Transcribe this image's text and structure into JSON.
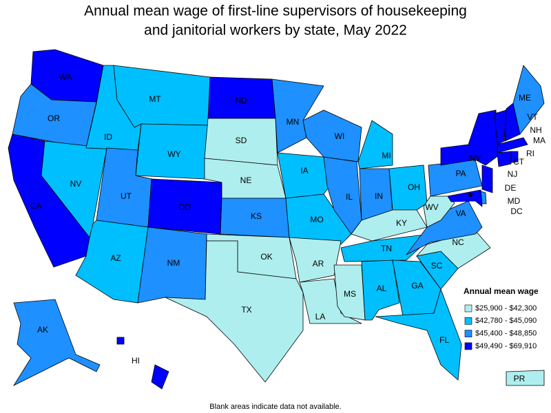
{
  "title": [
    "Annual mean wage of first-line supervisors of housekeeping",
    "and janitorial workers by state, May 2022"
  ],
  "legend": {
    "title": "Annual mean wage",
    "items": [
      {
        "label": "$25,900 - $42,300",
        "color": "#afeeee"
      },
      {
        "label": "$42,780 - $45,090",
        "color": "#00bfff"
      },
      {
        "label": "$45,400 - $48,850",
        "color": "#1e90ff"
      },
      {
        "label": "$49,490 - $69,910",
        "color": "#0000ff"
      }
    ]
  },
  "states": [
    {
      "label": "WA",
      "color": "#0000ff"
    },
    {
      "label": "OR",
      "color": "#1e90ff"
    },
    {
      "label": "CA",
      "color": "#0000ff"
    },
    {
      "label": "NV",
      "color": "#00bfff"
    },
    {
      "label": "ID",
      "color": "#00bfff"
    },
    {
      "label": "MT",
      "color": "#00bfff"
    },
    {
      "label": "WY",
      "color": "#00bfff"
    },
    {
      "label": "UT",
      "color": "#1e90ff"
    },
    {
      "label": "AZ",
      "color": "#00bfff"
    },
    {
      "label": "CO",
      "color": "#0000ff"
    },
    {
      "label": "NM",
      "color": "#1e90ff"
    },
    {
      "label": "ND",
      "color": "#0000ff"
    },
    {
      "label": "SD",
      "color": "#afeeee"
    },
    {
      "label": "NE",
      "color": "#afeeee"
    },
    {
      "label": "KS",
      "color": "#1e90ff"
    },
    {
      "label": "OK",
      "color": "#afeeee"
    },
    {
      "label": "TX",
      "color": "#afeeee"
    },
    {
      "label": "MN",
      "color": "#1e90ff"
    },
    {
      "label": "IA",
      "color": "#00bfff"
    },
    {
      "label": "MO",
      "color": "#00bfff"
    },
    {
      "label": "AR",
      "color": "#afeeee"
    },
    {
      "label": "LA",
      "color": "#afeeee"
    },
    {
      "label": "WI",
      "color": "#1e90ff"
    },
    {
      "label": "IL",
      "color": "#1e90ff"
    },
    {
      "label": "MS",
      "color": "#afeeee"
    },
    {
      "label": "MI",
      "color": "#00bfff"
    },
    {
      "label": "IN",
      "color": "#1e90ff"
    },
    {
      "label": "OH",
      "color": "#00bfff"
    },
    {
      "label": "KY",
      "color": "#afeeee"
    },
    {
      "label": "TN",
      "color": "#00bfff"
    },
    {
      "label": "AL",
      "color": "#00bfff"
    },
    {
      "label": "GA",
      "color": "#00bfff"
    },
    {
      "label": "FL",
      "color": "#00bfff"
    },
    {
      "label": "SC",
      "color": "#00bfff"
    },
    {
      "label": "NC",
      "color": "#afeeee"
    },
    {
      "label": "VA",
      "color": "#1e90ff"
    },
    {
      "label": "WV",
      "color": "#afeeee"
    },
    {
      "label": "PA",
      "color": "#1e90ff"
    },
    {
      "label": "NY",
      "color": "#0000ff"
    },
    {
      "label": "VT",
      "color": "#0000ff"
    },
    {
      "label": "NH",
      "color": "#0000ff"
    },
    {
      "label": "ME",
      "color": "#1e90ff"
    },
    {
      "label": "MA",
      "color": "#0000ff"
    },
    {
      "label": "RI",
      "color": "#0000ff"
    },
    {
      "label": "CT",
      "color": "#0000ff"
    },
    {
      "label": "NJ",
      "color": "#0000ff"
    },
    {
      "label": "DE",
      "color": "#1e90ff"
    },
    {
      "label": "MD",
      "color": "#0000ff"
    },
    {
      "label": "DC",
      "color": "#0000ff"
    },
    {
      "label": "AK",
      "color": "#1e90ff"
    },
    {
      "label": "HI",
      "color": "#0000ff"
    },
    {
      "label": "PR",
      "color": "#afeeee"
    }
  ],
  "note": "Blank areas indicate data not available."
}
